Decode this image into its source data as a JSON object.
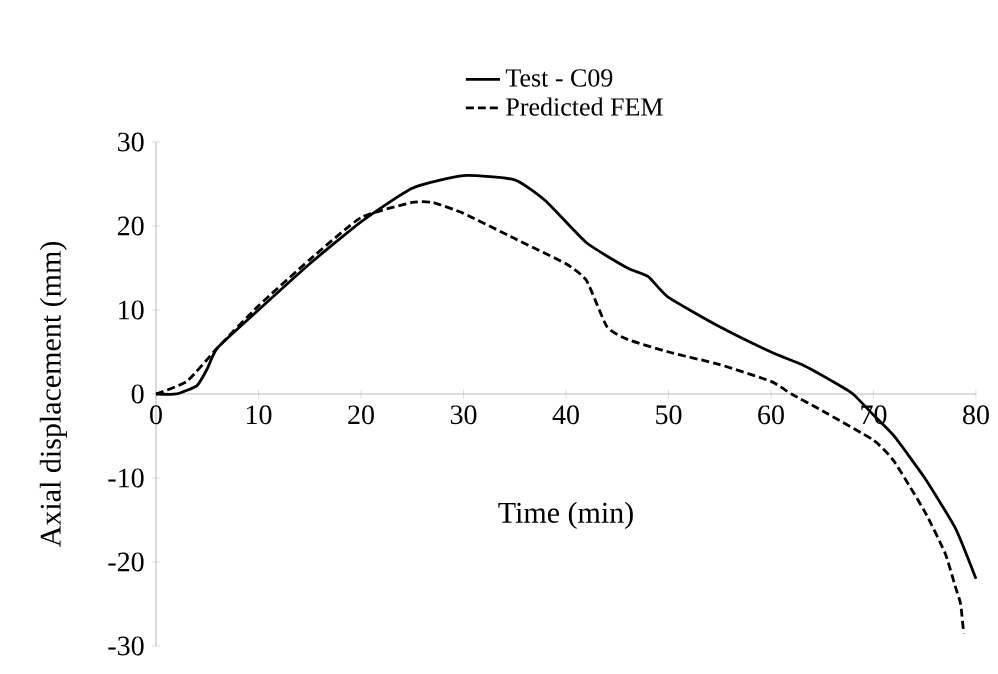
{
  "chart_data": {
    "type": "line",
    "xlabel": "Time (min)",
    "ylabel": "Axial displacement (mm)",
    "xlim": [
      0,
      80
    ],
    "xticks": [
      0,
      10,
      20,
      30,
      40,
      50,
      60,
      70,
      80
    ],
    "ylim": [
      -30,
      30
    ],
    "yticks": [
      -30,
      -20,
      -10,
      0,
      10,
      20,
      30
    ],
    "legend": "top",
    "grid": false,
    "marker": "none",
    "series": [
      {
        "name": "Test - C09",
        "color": "#000000",
        "line_style": "solid",
        "x": [
          0,
          2,
          4,
          5,
          6,
          10,
          15,
          20,
          25,
          30,
          35,
          38,
          42,
          46,
          48,
          50,
          55,
          60,
          63,
          66,
          68,
          70,
          72,
          75,
          78,
          80
        ],
        "values": [
          0,
          0,
          1,
          3,
          5.5,
          10,
          15.5,
          20.5,
          24.5,
          26,
          25.5,
          23,
          18,
          15,
          14,
          11.5,
          8,
          5,
          3.5,
          1.5,
          0,
          -2.5,
          -5,
          -10,
          -16,
          -22
        ]
      },
      {
        "name": "Predicted FEM",
        "color": "#000000",
        "line_style": "dashed",
        "x": [
          0,
          3,
          6,
          10,
          15,
          20,
          25,
          27,
          30,
          35,
          40,
          42,
          44,
          46,
          50,
          55,
          60,
          62,
          65,
          70,
          72,
          75,
          77,
          78,
          78.5,
          78.8
        ],
        "values": [
          0,
          1.5,
          5.5,
          10.5,
          16,
          21,
          22.8,
          22.8,
          21.5,
          18.5,
          15.5,
          13.5,
          8,
          6.5,
          5,
          3.5,
          1.5,
          0,
          -2,
          -5.5,
          -8,
          -14,
          -19,
          -23,
          -25,
          -28.5
        ]
      }
    ]
  }
}
